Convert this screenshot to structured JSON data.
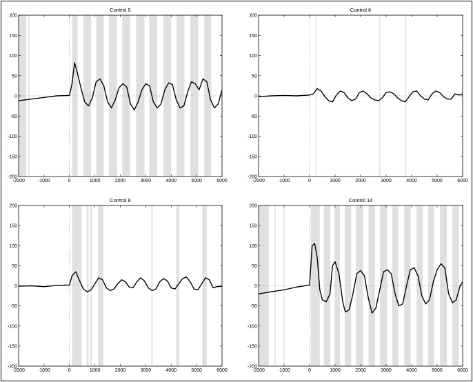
{
  "figure": {
    "panels": [
      "Control 5",
      "Control 6",
      "Control 8",
      "Control 14"
    ]
  },
  "chart_data": [
    {
      "type": "line",
      "title": "Control 5",
      "xlim": [
        -2000,
        6000
      ],
      "ylim": [
        -200,
        200
      ],
      "xticks": [
        -2000,
        -1000,
        0,
        1000,
        2000,
        3000,
        4000,
        5000,
        6000
      ],
      "yticks": [
        -200,
        -150,
        -100,
        -50,
        0,
        50,
        100,
        150,
        200
      ],
      "stimulus_onset_x": 0,
      "shaded_intervals": [
        [
          -2000,
          -1700
        ],
        [
          -1620,
          -1580
        ],
        [
          100,
          320
        ],
        [
          550,
          850
        ],
        [
          1050,
          1350
        ],
        [
          1550,
          1870
        ],
        [
          2080,
          2380
        ],
        [
          2620,
          2950
        ],
        [
          3140,
          3450
        ],
        [
          3700,
          4000
        ],
        [
          4220,
          4520
        ],
        [
          4760,
          5070
        ],
        [
          5300,
          5580
        ]
      ],
      "series": [
        {
          "x": [
            -2000,
            -1500,
            -1000,
            -500,
            0,
            100,
            200,
            300,
            450,
            600,
            750,
            900,
            1050,
            1200,
            1350,
            1500,
            1650,
            1800,
            1950,
            2100,
            2250,
            2400,
            2550,
            2700,
            2850,
            3000,
            3150,
            3300,
            3450,
            3600,
            3750,
            3900,
            4050,
            4200,
            4350,
            4500,
            4650,
            4800,
            4950,
            5100,
            5250,
            5400,
            5550,
            5700,
            5850,
            6000
          ],
          "y": [
            -12,
            -8,
            -4,
            0,
            1,
            30,
            82,
            60,
            20,
            -15,
            -25,
            -5,
            35,
            42,
            25,
            -15,
            -30,
            -10,
            20,
            30,
            22,
            -20,
            -35,
            -15,
            15,
            30,
            25,
            -15,
            -30,
            -20,
            15,
            32,
            28,
            -10,
            -30,
            -25,
            10,
            35,
            30,
            15,
            42,
            35,
            -10,
            -30,
            -20,
            15
          ]
        }
      ]
    },
    {
      "type": "line",
      "title": "Control 6",
      "xlim": [
        -2000,
        6000
      ],
      "ylim": [
        -200,
        200
      ],
      "xticks": [
        -2000,
        -1000,
        0,
        1000,
        2000,
        3000,
        4000,
        5000,
        6000
      ],
      "yticks": [
        -200,
        -150,
        -100,
        -50,
        0,
        50,
        100,
        150,
        200
      ],
      "stimulus_onset_x": 0,
      "shaded_intervals": [
        [
          230,
          270
        ],
        [
          2730,
          2770
        ],
        [
          3730,
          3770
        ]
      ],
      "series": [
        {
          "x": [
            -2000,
            -1500,
            -1000,
            -500,
            0,
            150,
            300,
            450,
            600,
            750,
            900,
            1050,
            1200,
            1350,
            1500,
            1650,
            1800,
            1950,
            2100,
            2250,
            2400,
            2550,
            2700,
            2850,
            3000,
            3150,
            3300,
            3450,
            3600,
            3750,
            3900,
            4050,
            4200,
            4350,
            4500,
            4650,
            4800,
            4950,
            5100,
            5250,
            5400,
            5550,
            5700,
            5850,
            6000
          ],
          "y": [
            -2,
            0,
            1,
            0,
            2,
            5,
            18,
            12,
            -2,
            -12,
            -15,
            2,
            12,
            8,
            -5,
            -12,
            -8,
            8,
            12,
            5,
            -5,
            -10,
            -12,
            -5,
            8,
            10,
            5,
            -5,
            -12,
            -15,
            -2,
            10,
            12,
            0,
            -8,
            -10,
            5,
            12,
            8,
            -2,
            -8,
            -8,
            5,
            2,
            5
          ]
        }
      ]
    },
    {
      "type": "line",
      "title": "Control 8",
      "xlim": [
        -2000,
        6000
      ],
      "ylim": [
        -200,
        200
      ],
      "xticks": [
        -2000,
        -1000,
        0,
        1000,
        2000,
        3000,
        4000,
        5000,
        6000
      ],
      "yticks": [
        -200,
        -150,
        -100,
        -50,
        0,
        50,
        100,
        150,
        200
      ],
      "stimulus_onset_x": 0,
      "shaded_intervals": [
        [
          100,
          480
        ],
        [
          680,
          750
        ],
        [
          820,
          870
        ],
        [
          1120,
          1330
        ],
        [
          3220,
          3270
        ],
        [
          4200,
          4320
        ],
        [
          5230,
          5400
        ]
      ],
      "series": [
        {
          "x": [
            -2000,
            -1500,
            -1000,
            -500,
            0,
            100,
            250,
            400,
            550,
            700,
            850,
            1000,
            1150,
            1300,
            1450,
            1600,
            1750,
            1900,
            2050,
            2200,
            2350,
            2500,
            2650,
            2800,
            2950,
            3100,
            3250,
            3400,
            3550,
            3700,
            3850,
            4000,
            4150,
            4300,
            4450,
            4600,
            4750,
            4900,
            5050,
            5200,
            5350,
            5500,
            5650,
            5800,
            6000
          ],
          "y": [
            -1,
            0,
            -2,
            1,
            2,
            25,
            35,
            12,
            -8,
            -15,
            -10,
            5,
            20,
            15,
            -5,
            -12,
            -8,
            5,
            15,
            10,
            -3,
            -5,
            10,
            20,
            12,
            -5,
            -12,
            -8,
            10,
            18,
            12,
            -5,
            -8,
            5,
            18,
            22,
            10,
            -8,
            -10,
            5,
            20,
            15,
            -5,
            -2,
            -1
          ]
        }
      ]
    },
    {
      "type": "line",
      "title": "Control 14",
      "xlim": [
        -2000,
        6000
      ],
      "ylim": [
        -200,
        200
      ],
      "xticks": [
        -2000,
        -1000,
        0,
        1000,
        2000,
        3000,
        4000,
        5000,
        6000
      ],
      "yticks": [
        -200,
        -150,
        -100,
        -50,
        0,
        50,
        100,
        150,
        200
      ],
      "stimulus_onset_x": 0,
      "shaded_intervals": [
        [
          -2000,
          -1600
        ],
        [
          -1370,
          -1330
        ],
        [
          -1020,
          -980
        ],
        [
          50,
          400
        ],
        [
          560,
          810
        ],
        [
          980,
          1190
        ],
        [
          1380,
          1630
        ],
        [
          1820,
          2100
        ],
        [
          2310,
          2560
        ],
        [
          2760,
          3040
        ],
        [
          3240,
          3480
        ],
        [
          3710,
          3960
        ],
        [
          4190,
          4440
        ],
        [
          4640,
          4880
        ],
        [
          5110,
          5380
        ],
        [
          5600,
          5850
        ]
      ],
      "series": [
        {
          "x": [
            -2000,
            -1500,
            -1000,
            -500,
            0,
            100,
            200,
            300,
            400,
            500,
            650,
            800,
            900,
            1000,
            1150,
            1300,
            1400,
            1550,
            1700,
            1850,
            2000,
            2150,
            2300,
            2450,
            2600,
            2750,
            2900,
            3050,
            3200,
            3350,
            3500,
            3650,
            3800,
            3950,
            4100,
            4250,
            4400,
            4550,
            4700,
            4850,
            5000,
            5150,
            5300,
            5450,
            5600,
            5750,
            5900,
            6000
          ],
          "y": [
            -20,
            -15,
            -10,
            -3,
            2,
            100,
            105,
            70,
            -10,
            -35,
            -40,
            -20,
            50,
            60,
            30,
            -40,
            -65,
            -60,
            -20,
            30,
            38,
            25,
            -30,
            -68,
            -55,
            -10,
            35,
            40,
            30,
            -20,
            -50,
            -45,
            0,
            40,
            45,
            25,
            -25,
            -45,
            -35,
            10,
            40,
            55,
            45,
            -20,
            -42,
            -35,
            0,
            10
          ]
        }
      ]
    }
  ]
}
